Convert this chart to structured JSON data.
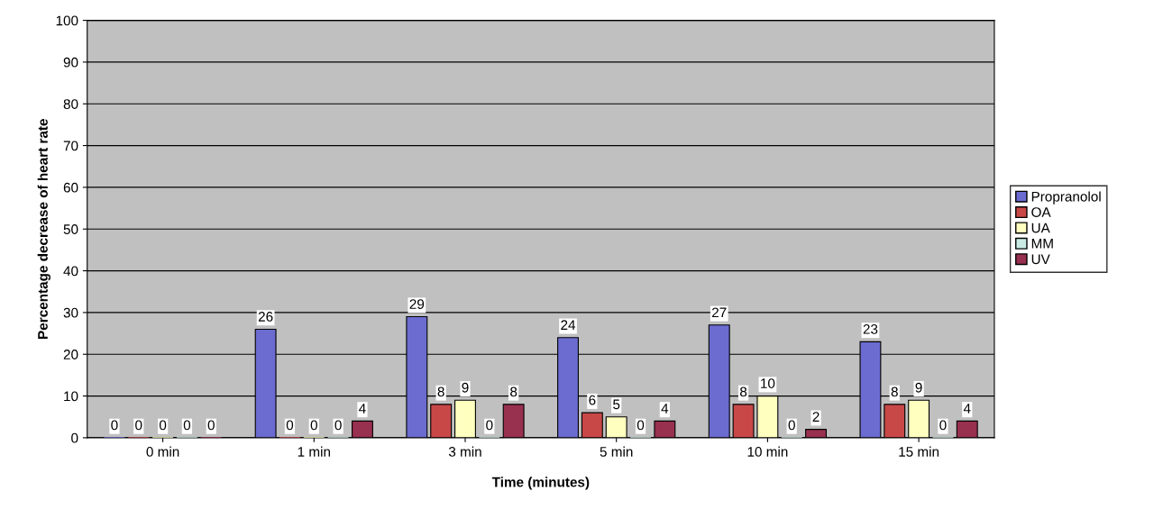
{
  "chart_data": {
    "type": "bar",
    "xlabel": "Time (minutes)",
    "ylabel": "Percentage decrease of heart rate",
    "categories": [
      "0 min",
      "1 min",
      "3 min",
      "5 min",
      "10 min",
      "15 min"
    ],
    "series": [
      {
        "name": "Propranolol",
        "color": "#6b6bd0",
        "values": [
          0,
          26,
          29,
          24,
          27,
          23
        ]
      },
      {
        "name": "OA",
        "color": "#c84848",
        "values": [
          0,
          0,
          8,
          6,
          8,
          8
        ]
      },
      {
        "name": "UA",
        "color": "#ffffc0",
        "values": [
          0,
          0,
          9,
          5,
          10,
          9
        ]
      },
      {
        "name": "MM",
        "color": "#c8ece4",
        "values": [
          0,
          0,
          0,
          0,
          0,
          0
        ]
      },
      {
        "name": "UV",
        "color": "#983050",
        "values": [
          0,
          4,
          8,
          4,
          2,
          4
        ]
      }
    ],
    "ylim": [
      0,
      100
    ],
    "yticks": [
      0,
      10,
      20,
      30,
      40,
      50,
      60,
      70,
      80,
      90,
      100
    ],
    "grid": "y",
    "legend": "right",
    "data_labels": true
  }
}
